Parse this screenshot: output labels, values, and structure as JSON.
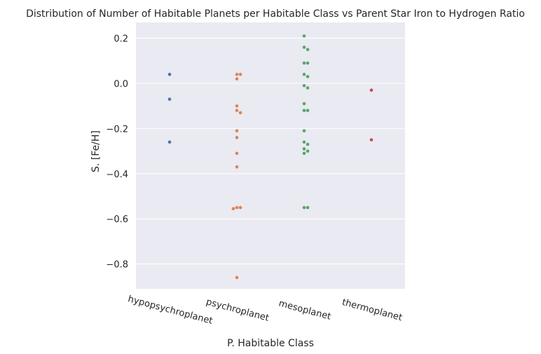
{
  "chart_data": {
    "type": "scatter",
    "subtype": "swarm",
    "title": "Distribution of Number of Habitable Planets per Habitable Class vs Parent Star Iron to Hydrogen Ratio",
    "xlabel": "P. Habitable Class",
    "ylabel": "S. [Fe/H]",
    "categories": [
      "hypopsychroplanet",
      "psychroplanet",
      "mesoplanet",
      "thermoplanet"
    ],
    "ylim": [
      -0.91,
      0.27
    ],
    "yticks": [
      0.2,
      0.0,
      -0.2,
      -0.4,
      -0.6,
      -0.8
    ],
    "ytick_labels": [
      "0.2",
      "0.0",
      "−0.2",
      "−0.4",
      "−0.6",
      "−0.8"
    ],
    "grid": true,
    "background": "#eaeaf2",
    "series": [
      {
        "category": "hypopsychroplanet",
        "color": "#4c72b0",
        "values": [
          0.04,
          -0.07,
          -0.26
        ]
      },
      {
        "category": "psychroplanet",
        "color": "#dd8452",
        "values": [
          0.04,
          0.04,
          0.02,
          -0.1,
          -0.12,
          -0.13,
          -0.21,
          -0.24,
          -0.31,
          -0.37,
          -0.55,
          -0.555,
          -0.55,
          -0.86
        ]
      },
      {
        "category": "mesoplanet",
        "color": "#55a868",
        "values": [
          0.21,
          0.16,
          0.15,
          0.09,
          0.09,
          0.04,
          0.03,
          -0.01,
          -0.02,
          -0.09,
          -0.12,
          -0.12,
          -0.21,
          -0.26,
          -0.27,
          -0.29,
          -0.3,
          -0.31,
          -0.55,
          -0.55
        ]
      },
      {
        "category": "thermoplanet",
        "color": "#c44e52",
        "values": [
          -0.03,
          -0.25
        ]
      }
    ]
  }
}
